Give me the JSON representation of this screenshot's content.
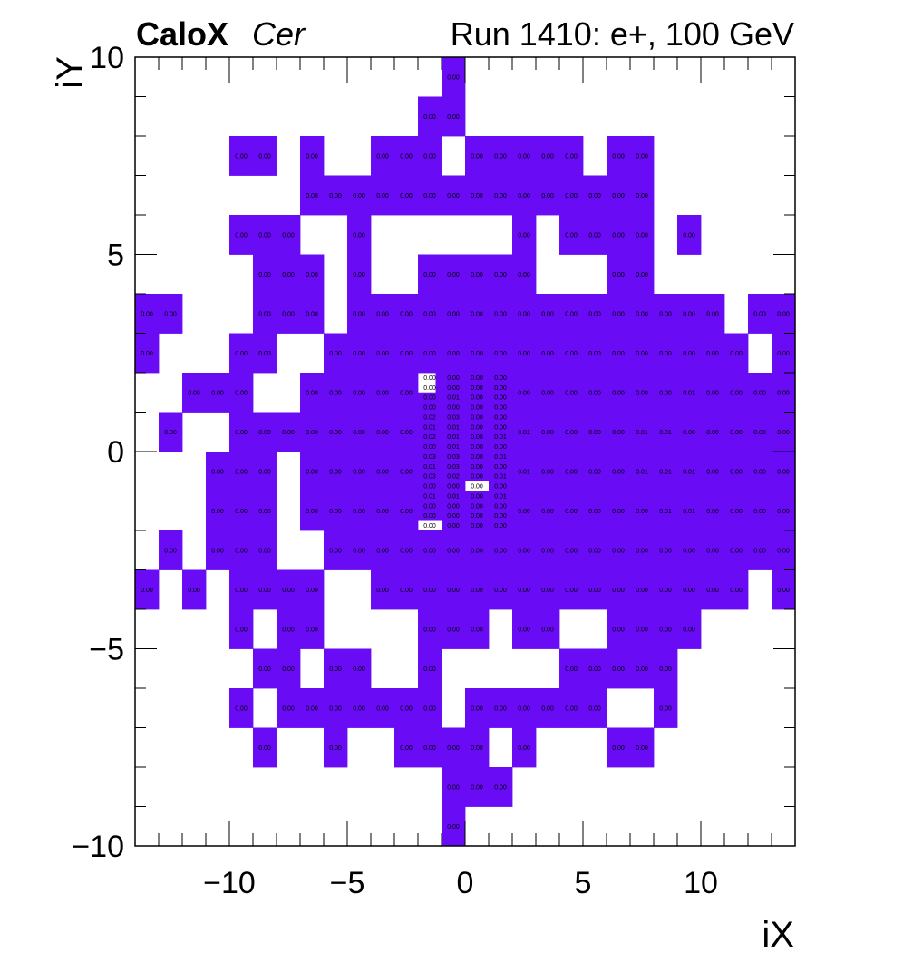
{
  "header": {
    "brand": "CaloX",
    "subtitle": "Cer",
    "run_info": "Run 1410: e+, 100 GeV"
  },
  "chart_data": {
    "type": "heatmap",
    "xlabel": "iX",
    "ylabel": "iY",
    "xlim": [
      -14,
      14
    ],
    "ylim": [
      -10,
      10
    ],
    "x_ticks": [
      "−10",
      "−5",
      "0",
      "5",
      "10"
    ],
    "x_tick_values": [
      -10,
      -5,
      0,
      5,
      10
    ],
    "y_ticks": [
      "−10",
      "−5",
      "0",
      "5",
      "10"
    ],
    "y_tick_values": [
      -10,
      -5,
      0,
      5,
      10
    ],
    "fill_color": "#6a0bf5",
    "grid": false,
    "coarse_cells": [
      {
        "y": 9,
        "x": [
          -1
        ]
      },
      {
        "y": 8,
        "x": [
          -2,
          -1
        ]
      },
      {
        "y": 7,
        "x": [
          -10,
          -9,
          -7,
          -4,
          -3,
          -2,
          0,
          1,
          2,
          3,
          4,
          6,
          7
        ]
      },
      {
        "y": 6,
        "x": [
          -7,
          -6,
          -5,
          -4,
          -3,
          -2,
          -1,
          0,
          1,
          2,
          3,
          4,
          5,
          6,
          7
        ]
      },
      {
        "y": 5,
        "x": [
          -10,
          -9,
          -8,
          -5,
          2,
          4,
          5,
          6,
          7,
          9
        ]
      },
      {
        "y": 4,
        "x": [
          -9,
          -8,
          -7,
          -5,
          -2,
          -1,
          0,
          1,
          2,
          6,
          7
        ]
      },
      {
        "y": 3,
        "x": [
          -14,
          -13,
          -9,
          -8,
          -7,
          -5,
          -4,
          -3,
          -2,
          -1,
          0,
          1,
          2,
          3,
          4,
          5,
          6,
          7,
          8,
          9,
          10,
          12,
          13
        ]
      },
      {
        "y": 2,
        "x": [
          -14,
          -10,
          -9,
          -6,
          -5,
          -4,
          -3,
          -2,
          -1,
          0,
          1,
          2,
          3,
          4,
          5,
          6,
          7,
          8,
          9,
          10,
          11,
          13
        ]
      },
      {
        "y": 1,
        "x": [
          -12,
          -11,
          -10,
          -7,
          -6,
          -5,
          -4,
          -3,
          2,
          3,
          4,
          5,
          6,
          7,
          8,
          9,
          10,
          11,
          12,
          13
        ]
      },
      {
        "y": 0,
        "x": [
          -13,
          -10,
          -9,
          -8,
          -7,
          -6,
          -5,
          -4,
          -3,
          2,
          3,
          4,
          5,
          6,
          7,
          8,
          9,
          10,
          11,
          12,
          13
        ]
      },
      {
        "y": -1,
        "x": [
          -11,
          -10,
          -9,
          -7,
          -6,
          -5,
          -4,
          -3,
          2,
          3,
          4,
          5,
          6,
          7,
          8,
          9,
          10,
          11,
          12,
          13
        ]
      },
      {
        "y": -2,
        "x": [
          -11,
          -10,
          -9,
          -7,
          -6,
          -5,
          -4,
          -3,
          2,
          3,
          4,
          5,
          6,
          7,
          8,
          9,
          10,
          11,
          12,
          13
        ]
      },
      {
        "y": -3,
        "x": [
          -13,
          -11,
          -10,
          -9,
          -6,
          -5,
          -4,
          -3,
          -2,
          -1,
          0,
          1,
          2,
          3,
          4,
          5,
          6,
          7,
          8,
          9,
          10,
          11,
          12,
          13
        ]
      },
      {
        "y": -4,
        "x": [
          -14,
          -12,
          -10,
          -9,
          -8,
          -7,
          -4,
          -3,
          -2,
          -1,
          0,
          1,
          2,
          3,
          4,
          5,
          6,
          7,
          8,
          9,
          10,
          11,
          13
        ]
      },
      {
        "y": -5,
        "x": [
          -10,
          -8,
          -7,
          -2,
          -1,
          0,
          2,
          3,
          6,
          7,
          8,
          9
        ]
      },
      {
        "y": -6,
        "x": [
          -9,
          -8,
          -6,
          -5,
          -2,
          4,
          5,
          6,
          7,
          8
        ]
      },
      {
        "y": -7,
        "x": [
          -10,
          -8,
          -7,
          -6,
          -5,
          -4,
          -3,
          -2,
          0,
          1,
          2,
          3,
          4,
          5,
          8
        ]
      },
      {
        "y": -8,
        "x": [
          -9,
          -6,
          -3,
          -2,
          -1,
          0,
          2,
          6,
          7
        ]
      },
      {
        "y": -9,
        "x": [
          -1,
          0,
          1
        ]
      },
      {
        "y": -10,
        "x": [
          -1
        ]
      }
    ],
    "coarse_labels": [
      {
        "y": 9,
        "v": [
          "0.00"
        ]
      },
      {
        "y": 8,
        "v": [
          "0.00",
          "0.00"
        ]
      },
      {
        "y": 7,
        "v": [
          "0.00",
          "0.00",
          "0.00",
          "0.00",
          "0.00",
          "0.00",
          "0.00",
          "0.00",
          "0.00",
          "0.00",
          "0.00",
          "0.00",
          "0.00"
        ]
      },
      {
        "y": 6,
        "v": [
          "0.00",
          "0.00",
          "0.00",
          "0.00",
          "0.00",
          "0.00",
          "0.00",
          "0.00",
          "0.00",
          "0.00",
          "0.00",
          "0.00",
          "0.00",
          "0.00",
          "0.00"
        ]
      },
      {
        "y": 5,
        "v": [
          "0.00",
          "0.00",
          "0.00",
          "0.00",
          "0.00",
          "0.00",
          "0.00",
          "0.00",
          "0.00",
          "0.00"
        ]
      },
      {
        "y": 4,
        "v": [
          "0.00",
          "0.00",
          "0.00",
          "0.00",
          "0.00",
          "0.00",
          "0.00",
          "0.00",
          "0.00",
          "0.00",
          "0.00"
        ]
      },
      {
        "y": 3,
        "v": [
          "0.00",
          "0.00",
          "0.00",
          "0.00",
          "0.00",
          "0.00",
          "0.00",
          "0.00",
          "0.00",
          "0.00",
          "0.00",
          "0.00",
          "0.00",
          "0.00",
          "0.00",
          "0.00",
          "0.00",
          "0.00",
          "0.00",
          "0.00",
          "0.00",
          "0.00",
          "0.00"
        ]
      },
      {
        "y": 2,
        "v": [
          "0.00",
          "0.00",
          "0.00",
          "0.00",
          "0.00",
          "0.00",
          "0.00",
          "0.00",
          "0.00",
          "0.00",
          "0.00",
          "0.00",
          "0.00",
          "0.00",
          "0.00",
          "0.00",
          "0.00",
          "0.00",
          "0.00",
          "0.00",
          "0.00",
          "0.00"
        ]
      },
      {
        "y": 1,
        "v": [
          "0.00",
          "0.00",
          "0.00",
          "0.00",
          "0.00",
          "0.00",
          "0.00",
          "0.00",
          "0.00",
          "0.00",
          "0.00",
          "0.00",
          "0.00",
          "0.00",
          "0.00",
          "0.01",
          "0.00",
          "0.00",
          "0.00",
          "0.00"
        ]
      },
      {
        "y": 0,
        "v": [
          "0.00",
          "0.00",
          "0.00",
          "0.00",
          "0.00",
          "0.00",
          "0.00",
          "0.00",
          "0.00",
          "0.01",
          "0.00",
          "0.00",
          "0.00",
          "0.00",
          "0.01",
          "0.01",
          "0.00",
          "0.00",
          "0.00",
          "0.00",
          "0.00"
        ]
      },
      {
        "y": -1,
        "v": [
          "0.00",
          "0.00",
          "0.00",
          "0.00",
          "0.00",
          "0.00",
          "0.00",
          "0.00",
          "0.01",
          "0.00",
          "0.00",
          "0.00",
          "0.00",
          "0.01",
          "0.01",
          "0.01",
          "0.00",
          "0.00",
          "0.00",
          "0.00"
        ]
      },
      {
        "y": -2,
        "v": [
          "0.00",
          "0.00",
          "0.00",
          "0.00",
          "0.00",
          "0.00",
          "0.00",
          "0.00",
          "0.00",
          "0.00",
          "0.00",
          "0.00",
          "0.00",
          "0.00",
          "0.01",
          "0.01",
          "0.00",
          "0.00",
          "0.00",
          "0.00"
        ]
      },
      {
        "y": -3,
        "v": [
          "0.00",
          "0.00",
          "0.00",
          "0.00",
          "0.00",
          "0.00",
          "0.00",
          "0.00",
          "0.00",
          "0.00",
          "0.00",
          "0.00",
          "0.00",
          "0.00",
          "0.00",
          "0.00",
          "0.00",
          "0.00",
          "0.00",
          "0.00",
          "0.00",
          "0.00",
          "0.00",
          "0.00"
        ]
      },
      {
        "y": -4,
        "v": [
          "0.00",
          "0.00",
          "0.00",
          "0.00",
          "0.00",
          "0.00",
          "0.00",
          "0.00",
          "0.00",
          "0.00",
          "0.00",
          "0.00",
          "0.00",
          "0.00",
          "0.00",
          "0.00",
          "0.00",
          "0.00",
          "0.00",
          "0.00",
          "0.00",
          "0.00",
          "0.00"
        ]
      },
      {
        "y": -5,
        "v": [
          "0.00",
          "0.00",
          "0.00",
          "0.00",
          "0.00",
          "0.00",
          "0.00",
          "0.00",
          "0.00",
          "0.00",
          "0.00",
          "0.00"
        ]
      },
      {
        "y": -6,
        "v": [
          "0.00",
          "0.00",
          "0.00",
          "0.00",
          "0.00",
          "0.00",
          "0.00",
          "0.00",
          "0.00",
          "0.00"
        ]
      },
      {
        "y": -7,
        "v": [
          "0.00",
          "0.00",
          "0.00",
          "0.00",
          "0.00",
          "0.00",
          "0.00",
          "0.00",
          "0.00",
          "0.00",
          "0.00",
          "0.00",
          "0.00",
          "0.00",
          "0.00"
        ]
      },
      {
        "y": -8,
        "v": [
          "0.00",
          "0.00",
          "0.00",
          "0.00",
          "0.00",
          "0.00",
          "0.00",
          "0.00",
          "0.00"
        ]
      },
      {
        "y": -9,
        "v": [
          "0.00",
          "0.00",
          "0.00"
        ]
      },
      {
        "y": -10,
        "v": [
          "0.00"
        ]
      }
    ],
    "fine_region": {
      "x_range": [
        -2,
        2
      ],
      "y_range": [
        -2,
        2
      ],
      "subdivisions": 4
    },
    "fine_cells": [
      {
        "row": 0,
        "x": [
          -1.25,
          -1,
          -0.75,
          -0.5,
          -0.25,
          0,
          0.25,
          0.5,
          0.75,
          1,
          1.25,
          1.5,
          1.75
        ]
      },
      {
        "row": 1,
        "x": [
          -1.25,
          -1,
          -0.75,
          -0.5,
          -0.25,
          0,
          0.25,
          0.5,
          0.75,
          1,
          1.25,
          1.5,
          1.75
        ]
      },
      {
        "row": 2,
        "x": [
          -2,
          -1.75,
          -1.5,
          -1.25,
          -1,
          -0.75,
          -0.5,
          -0.25,
          0,
          0.25,
          0.5,
          0.75,
          1,
          1.25,
          1.5,
          1.75
        ]
      },
      {
        "row": 3,
        "x": [
          -2,
          -1.75,
          -1.5,
          -1.25,
          -1,
          -0.75,
          -0.5,
          -0.25,
          0,
          0.25,
          0.5,
          0.75,
          1,
          1.25,
          1.5,
          1.75
        ]
      },
      {
        "row": 4,
        "x": [
          -2,
          -1.75,
          -1.5,
          -1.25,
          -1,
          -0.75,
          -0.5,
          -0.25,
          0,
          0.25,
          0.5,
          0.75,
          1,
          1.25,
          1.5,
          1.75
        ]
      },
      {
        "row": 5,
        "x": [
          -2,
          -1.75,
          -1.5,
          -1.25,
          -1,
          -0.75,
          -0.5,
          -0.25,
          0,
          0.25,
          0.5,
          0.75,
          1,
          1.25,
          1.5,
          1.75
        ]
      },
      {
        "row": 6,
        "x": [
          -2,
          -1.75,
          -1.5,
          -1.25,
          -1,
          -0.75,
          -0.5,
          -0.25,
          0,
          0.25,
          0.5,
          0.75,
          1,
          1.25,
          1.5,
          1.75
        ]
      },
      {
        "row": 7,
        "x": [
          -2,
          -1.75,
          -1.5,
          -1.25,
          -1,
          -0.75,
          -0.5,
          -0.25,
          0,
          0.25,
          0.5,
          0.75,
          1,
          1.25,
          1.5,
          1.75
        ]
      },
      {
        "row": 8,
        "x": [
          -2,
          -1.75,
          -1.5,
          -1.25,
          -1,
          -0.75,
          -0.5,
          -0.25,
          0,
          0.25,
          0.5,
          0.75,
          1,
          1.25,
          1.5,
          1.75
        ]
      },
      {
        "row": 9,
        "x": [
          -2,
          -1.75,
          -1.5,
          -1.25,
          -1,
          -0.75,
          -0.5,
          -0.25,
          0,
          0.25,
          0.5,
          0.75,
          1,
          1.25,
          1.5,
          1.75
        ]
      },
      {
        "row": 10,
        "x": [
          -2,
          -1.75,
          -1.5,
          -1.25,
          -1,
          -0.75,
          -0.5,
          -0.25,
          0,
          0.25,
          0.5,
          0.75,
          1,
          1.25,
          1.5,
          1.75
        ]
      },
      {
        "row": 11,
        "x": [
          -2,
          -1.75,
          -1.5,
          -1.25,
          -1,
          -0.75,
          -0.5,
          -0.25,
          1,
          1.25,
          1.5,
          1.75
        ]
      },
      {
        "row": 12,
        "x": [
          -2,
          -1.75,
          -1.5,
          -1.25,
          -1,
          -0.75,
          -0.5,
          -0.25,
          0,
          0.25,
          0.5,
          0.75,
          1,
          1.25,
          1.5,
          1.75
        ]
      },
      {
        "row": 13,
        "x": [
          -2,
          -1.75,
          -1.5,
          -1.25,
          -1,
          -0.75,
          -0.5,
          -0.25,
          0,
          0.25,
          0.5,
          0.75,
          1,
          1.25,
          1.5,
          1.75
        ]
      },
      {
        "row": 14,
        "x": [
          -2,
          -1.75,
          -1.5,
          -1.25,
          -1,
          -0.75,
          -0.5,
          -0.25,
          0,
          0.25,
          0.5,
          0.75,
          1,
          1.25,
          1.5,
          1.75
        ]
      },
      {
        "row": 15,
        "x": [
          -1,
          -0.75,
          -0.5,
          -0.25,
          0,
          0.25,
          0.5,
          0.75,
          1,
          1.25,
          1.5,
          1.75
        ]
      }
    ],
    "fine_label_rows": [
      [
        "0.00",
        "0.00",
        "0.00",
        "0.00"
      ],
      [
        "0.00",
        "0.00",
        "0.00",
        "0.00"
      ],
      [
        "0.00",
        "0.01",
        "0.00",
        "0.00"
      ],
      [
        "0.00",
        "0.00",
        "0.00",
        "0.00"
      ],
      [
        "0.02",
        "0.03",
        "0.00",
        "0.00"
      ],
      [
        "0.01",
        "0.01",
        "0.00",
        "0.00"
      ],
      [
        "0.02",
        "0.01",
        "0.00",
        "0.01"
      ],
      [
        "0.00",
        "0.01",
        "0.00",
        "0.00"
      ],
      [
        "0.03",
        "0.03",
        "0.00",
        "0.01"
      ],
      [
        "0.01",
        "0.03",
        "0.00",
        "0.00"
      ],
      [
        "0.03",
        "0.02",
        "0.00",
        "0.01"
      ],
      [
        "0.00",
        "0.00",
        "0.00",
        "0.00"
      ],
      [
        "0.01",
        "0.01",
        "0.00",
        "0.01"
      ],
      [
        "0.00",
        "0.00",
        "0.00",
        "0.00"
      ],
      [
        "0.00",
        "0.00",
        "0.00",
        "0.00"
      ],
      [
        "0.00",
        "0.00",
        "0.00",
        "0.00"
      ]
    ]
  }
}
